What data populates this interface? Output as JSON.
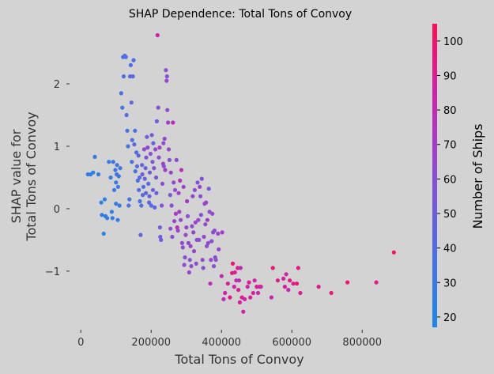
{
  "chart_data": {
    "type": "scatter",
    "title": "SHAP Dependence: Total Tons of Convoy",
    "xlabel": "Total Tons of Convoy",
    "ylabel": [
      "SHAP value for",
      "Total Tons of Convoy"
    ],
    "xlim": [
      -50000,
      950000
    ],
    "ylim": [
      -1.85,
      2.9
    ],
    "x_ticks": [
      0,
      200000,
      400000,
      600000,
      800000
    ],
    "x_tick_labels": [
      "0",
      "200000",
      "400000",
      "600000",
      "800000"
    ],
    "y_ticks": [
      -1,
      0,
      1,
      2
    ],
    "y_tick_labels": [
      "−1",
      "0",
      "1",
      "2"
    ],
    "grid": false,
    "colorbar": {
      "label": "Number of Ships",
      "range": [
        17,
        105
      ],
      "ticks": [
        20,
        30,
        40,
        50,
        60,
        70,
        80,
        90,
        100
      ],
      "tick_labels": [
        "20",
        "30",
        "40",
        "50",
        "60",
        "70",
        "80",
        "90",
        "100"
      ],
      "color_low": "#1e88e5",
      "color_high": "#ff0d57"
    },
    "points": [
      [
        20000,
        0.55,
        25
      ],
      [
        28000,
        0.55,
        24
      ],
      [
        35000,
        0.58,
        23
      ],
      [
        40000,
        0.83,
        26
      ],
      [
        50000,
        0.55,
        28
      ],
      [
        58000,
        0.1,
        22
      ],
      [
        60000,
        -0.1,
        24
      ],
      [
        65000,
        -0.4,
        22
      ],
      [
        68000,
        0.15,
        23
      ],
      [
        70000,
        -0.12,
        25
      ],
      [
        75000,
        -0.15,
        26
      ],
      [
        80000,
        0.75,
        28
      ],
      [
        85000,
        0.5,
        27
      ],
      [
        88000,
        -0.05,
        24
      ],
      [
        90000,
        -0.15,
        26
      ],
      [
        92000,
        0.75,
        29
      ],
      [
        95000,
        0.3,
        30
      ],
      [
        98000,
        0.62,
        31
      ],
      [
        100000,
        0.42,
        30
      ],
      [
        100000,
        0.08,
        28
      ],
      [
        102000,
        0.55,
        29
      ],
      [
        103000,
        0.7,
        32
      ],
      [
        105000,
        -0.18,
        28
      ],
      [
        106000,
        0.35,
        30
      ],
      [
        108000,
        0.52,
        33
      ],
      [
        110000,
        0.05,
        27
      ],
      [
        112000,
        0.65,
        34
      ],
      [
        115000,
        1.85,
        36
      ],
      [
        118000,
        1.62,
        33
      ],
      [
        120000,
        2.43,
        38
      ],
      [
        122000,
        2.12,
        35
      ],
      [
        125000,
        2.45,
        40
      ],
      [
        128000,
        2.43,
        38
      ],
      [
        130000,
        1.5,
        40
      ],
      [
        132000,
        1.25,
        35
      ],
      [
        134000,
        1.0,
        33
      ],
      [
        136000,
        0.05,
        36
      ],
      [
        138000,
        0.15,
        31
      ],
      [
        140000,
        2.12,
        42
      ],
      [
        142000,
        2.3,
        40
      ],
      [
        144000,
        1.7,
        44
      ],
      [
        145000,
        0.75,
        32
      ],
      [
        146000,
        1.1,
        38
      ],
      [
        148000,
        2.12,
        45
      ],
      [
        150000,
        2.38,
        37
      ],
      [
        152000,
        1.03,
        43
      ],
      [
        154000,
        1.25,
        39
      ],
      [
        155000,
        0.6,
        36
      ],
      [
        158000,
        0.9,
        40
      ],
      [
        160000,
        0.68,
        44
      ],
      [
        162000,
        0.45,
        38
      ],
      [
        164000,
        0.85,
        46
      ],
      [
        165000,
        0.3,
        42
      ],
      [
        167000,
        0.5,
        40
      ],
      [
        168000,
        0.12,
        35
      ],
      [
        170000,
        -0.42,
        45
      ],
      [
        172000,
        0.05,
        38
      ],
      [
        174000,
        0.7,
        48
      ],
      [
        175000,
        0.55,
        52
      ],
      [
        176000,
        0.22,
        42
      ],
      [
        178000,
        0.35,
        40
      ],
      [
        180000,
        0.95,
        62
      ],
      [
        182000,
        0.48,
        50
      ],
      [
        184000,
        0.65,
        46
      ],
      [
        185000,
        0.25,
        44
      ],
      [
        186000,
        0.82,
        58
      ],
      [
        188000,
        1.15,
        50
      ],
      [
        190000,
        0.98,
        66
      ],
      [
        192000,
        0.4,
        40
      ],
      [
        194000,
        0.1,
        45
      ],
      [
        195000,
        0.2,
        48
      ],
      [
        196000,
        0.58,
        52
      ],
      [
        198000,
        0.88,
        60
      ],
      [
        200000,
        0.05,
        38
      ],
      [
        202000,
        1.18,
        54
      ],
      [
        204000,
        0.75,
        56
      ],
      [
        205000,
        0.3,
        50
      ],
      [
        206000,
        1.05,
        46
      ],
      [
        208000,
        0.65,
        58
      ],
      [
        210000,
        0.02,
        44
      ],
      [
        212000,
        0.95,
        64
      ],
      [
        214000,
        0.5,
        56
      ],
      [
        215000,
        0.25,
        48
      ],
      [
        216000,
        1.4,
        52
      ],
      [
        218000,
        2.78,
        85
      ],
      [
        220000,
        1.62,
        60
      ],
      [
        222000,
        0.82,
        62
      ],
      [
        224000,
        0.98,
        70
      ],
      [
        225000,
        -0.3,
        50
      ],
      [
        226000,
        -0.45,
        48
      ],
      [
        228000,
        -0.5,
        55
      ],
      [
        230000,
        0.05,
        58
      ],
      [
        232000,
        0.4,
        60
      ],
      [
        234000,
        0.72,
        68
      ],
      [
        235000,
        1.05,
        62
      ],
      [
        236000,
        0.68,
        56
      ],
      [
        238000,
        1.12,
        66
      ],
      [
        240000,
        0.62,
        72
      ],
      [
        242000,
        2.22,
        60
      ],
      [
        244000,
        2.05,
        64
      ],
      [
        245000,
        2.12,
        58
      ],
      [
        246000,
        1.58,
        62
      ],
      [
        248000,
        1.38,
        68
      ],
      [
        250000,
        0.95,
        64
      ],
      [
        252000,
        0.78,
        60
      ],
      [
        254000,
        0.22,
        55
      ],
      [
        255000,
        -0.32,
        62
      ],
      [
        256000,
        0.58,
        66
      ],
      [
        258000,
        0.05,
        58
      ],
      [
        260000,
        -0.45,
        60
      ],
      [
        262000,
        1.38,
        78
      ],
      [
        264000,
        0.42,
        64
      ],
      [
        266000,
        -0.2,
        66
      ],
      [
        268000,
        0.3,
        62
      ],
      [
        270000,
        -0.08,
        72
      ],
      [
        272000,
        0.78,
        64
      ],
      [
        274000,
        -0.3,
        78
      ],
      [
        276000,
        -0.35,
        66
      ],
      [
        278000,
        0.25,
        70
      ],
      [
        280000,
        -0.05,
        68
      ],
      [
        282000,
        0.45,
        75
      ],
      [
        284000,
        -0.18,
        62
      ],
      [
        286000,
        0.62,
        80
      ],
      [
        288000,
        -0.55,
        64
      ],
      [
        290000,
        -0.62,
        58
      ],
      [
        292000,
        0.35,
        66
      ],
      [
        294000,
        -0.9,
        62
      ],
      [
        296000,
        -0.78,
        60
      ],
      [
        298000,
        -0.42,
        66
      ],
      [
        300000,
        -0.3,
        64
      ],
      [
        302000,
        0.12,
        70
      ],
      [
        304000,
        -0.12,
        60
      ],
      [
        306000,
        -0.55,
        64
      ],
      [
        308000,
        -1.02,
        66
      ],
      [
        310000,
        -0.82,
        60
      ],
      [
        312000,
        -0.6,
        68
      ],
      [
        314000,
        -0.92,
        62
      ],
      [
        316000,
        -0.28,
        62
      ],
      [
        318000,
        0.2,
        66
      ],
      [
        320000,
        -0.38,
        64
      ],
      [
        322000,
        -0.68,
        66
      ],
      [
        324000,
        0.3,
        60
      ],
      [
        326000,
        -0.22,
        64
      ],
      [
        328000,
        -0.88,
        62
      ],
      [
        330000,
        -0.5,
        64
      ],
      [
        332000,
        0.42,
        60
      ],
      [
        334000,
        -0.18,
        66
      ],
      [
        336000,
        -0.5,
        62
      ],
      [
        338000,
        0.35,
        68
      ],
      [
        340000,
        0.2,
        60
      ],
      [
        342000,
        -0.1,
        62
      ],
      [
        344000,
        0.48,
        58
      ],
      [
        346000,
        -0.82,
        64
      ],
      [
        348000,
        -0.95,
        60
      ],
      [
        350000,
        -0.45,
        66
      ],
      [
        352000,
        0.08,
        62
      ],
      [
        354000,
        -0.25,
        64
      ],
      [
        356000,
        0.1,
        68
      ],
      [
        358000,
        -0.6,
        62
      ],
      [
        360000,
        -0.18,
        70
      ],
      [
        362000,
        -0.55,
        64
      ],
      [
        364000,
        0.32,
        58
      ],
      [
        366000,
        -0.05,
        64
      ],
      [
        368000,
        -1.2,
        80
      ],
      [
        370000,
        -0.82,
        66
      ],
      [
        372000,
        -0.52,
        60
      ],
      [
        374000,
        -0.08,
        66
      ],
      [
        376000,
        -0.38,
        62
      ],
      [
        378000,
        -0.92,
        60
      ],
      [
        380000,
        -0.35,
        64
      ],
      [
        382000,
        -0.78,
        58
      ],
      [
        384000,
        -0.82,
        62
      ],
      [
        390000,
        -0.4,
        66
      ],
      [
        392000,
        -0.65,
        64
      ],
      [
        400000,
        -1.08,
        82
      ],
      [
        402000,
        -0.38,
        70
      ],
      [
        406000,
        -1.45,
        80
      ],
      [
        410000,
        -1.35,
        84
      ],
      [
        418000,
        -1.2,
        90
      ],
      [
        424000,
        -1.42,
        92
      ],
      [
        430000,
        -1.03,
        96
      ],
      [
        432000,
        -0.88,
        98
      ],
      [
        436000,
        -1.25,
        86
      ],
      [
        438000,
        -1.02,
        88
      ],
      [
        442000,
        -1.15,
        82
      ],
      [
        446000,
        -0.95,
        94
      ],
      [
        448000,
        -1.3,
        90
      ],
      [
        450000,
        -1.15,
        80
      ],
      [
        452000,
        -1.5,
        88
      ],
      [
        454000,
        -0.95,
        78
      ],
      [
        458000,
        -1.42,
        92
      ],
      [
        462000,
        -1.65,
        86
      ],
      [
        466000,
        -1.45,
        84
      ],
      [
        474000,
        -1.25,
        82
      ],
      [
        478000,
        -1.18,
        90
      ],
      [
        482000,
        -1.42,
        88
      ],
      [
        490000,
        -1.35,
        86
      ],
      [
        494000,
        -1.15,
        84
      ],
      [
        500000,
        -1.25,
        90
      ],
      [
        504000,
        -1.35,
        82
      ],
      [
        508000,
        -1.25,
        88
      ],
      [
        512000,
        -1.25,
        86
      ],
      [
        542000,
        -1.42,
        84
      ],
      [
        546000,
        -0.95,
        96
      ],
      [
        560000,
        -1.15,
        92
      ],
      [
        576000,
        -1.12,
        88
      ],
      [
        580000,
        -1.25,
        90
      ],
      [
        584000,
        -1.05,
        86
      ],
      [
        590000,
        -1.3,
        82
      ],
      [
        594000,
        -1.15,
        94
      ],
      [
        604000,
        -1.2,
        92
      ],
      [
        614000,
        -1.2,
        96
      ],
      [
        618000,
        -0.95,
        94
      ],
      [
        624000,
        -1.35,
        90
      ],
      [
        676000,
        -1.25,
        92
      ],
      [
        712000,
        -1.35,
        96
      ],
      [
        758000,
        -1.18,
        98
      ],
      [
        840000,
        -1.18,
        94
      ],
      [
        890000,
        -0.7,
        102
      ]
    ]
  }
}
